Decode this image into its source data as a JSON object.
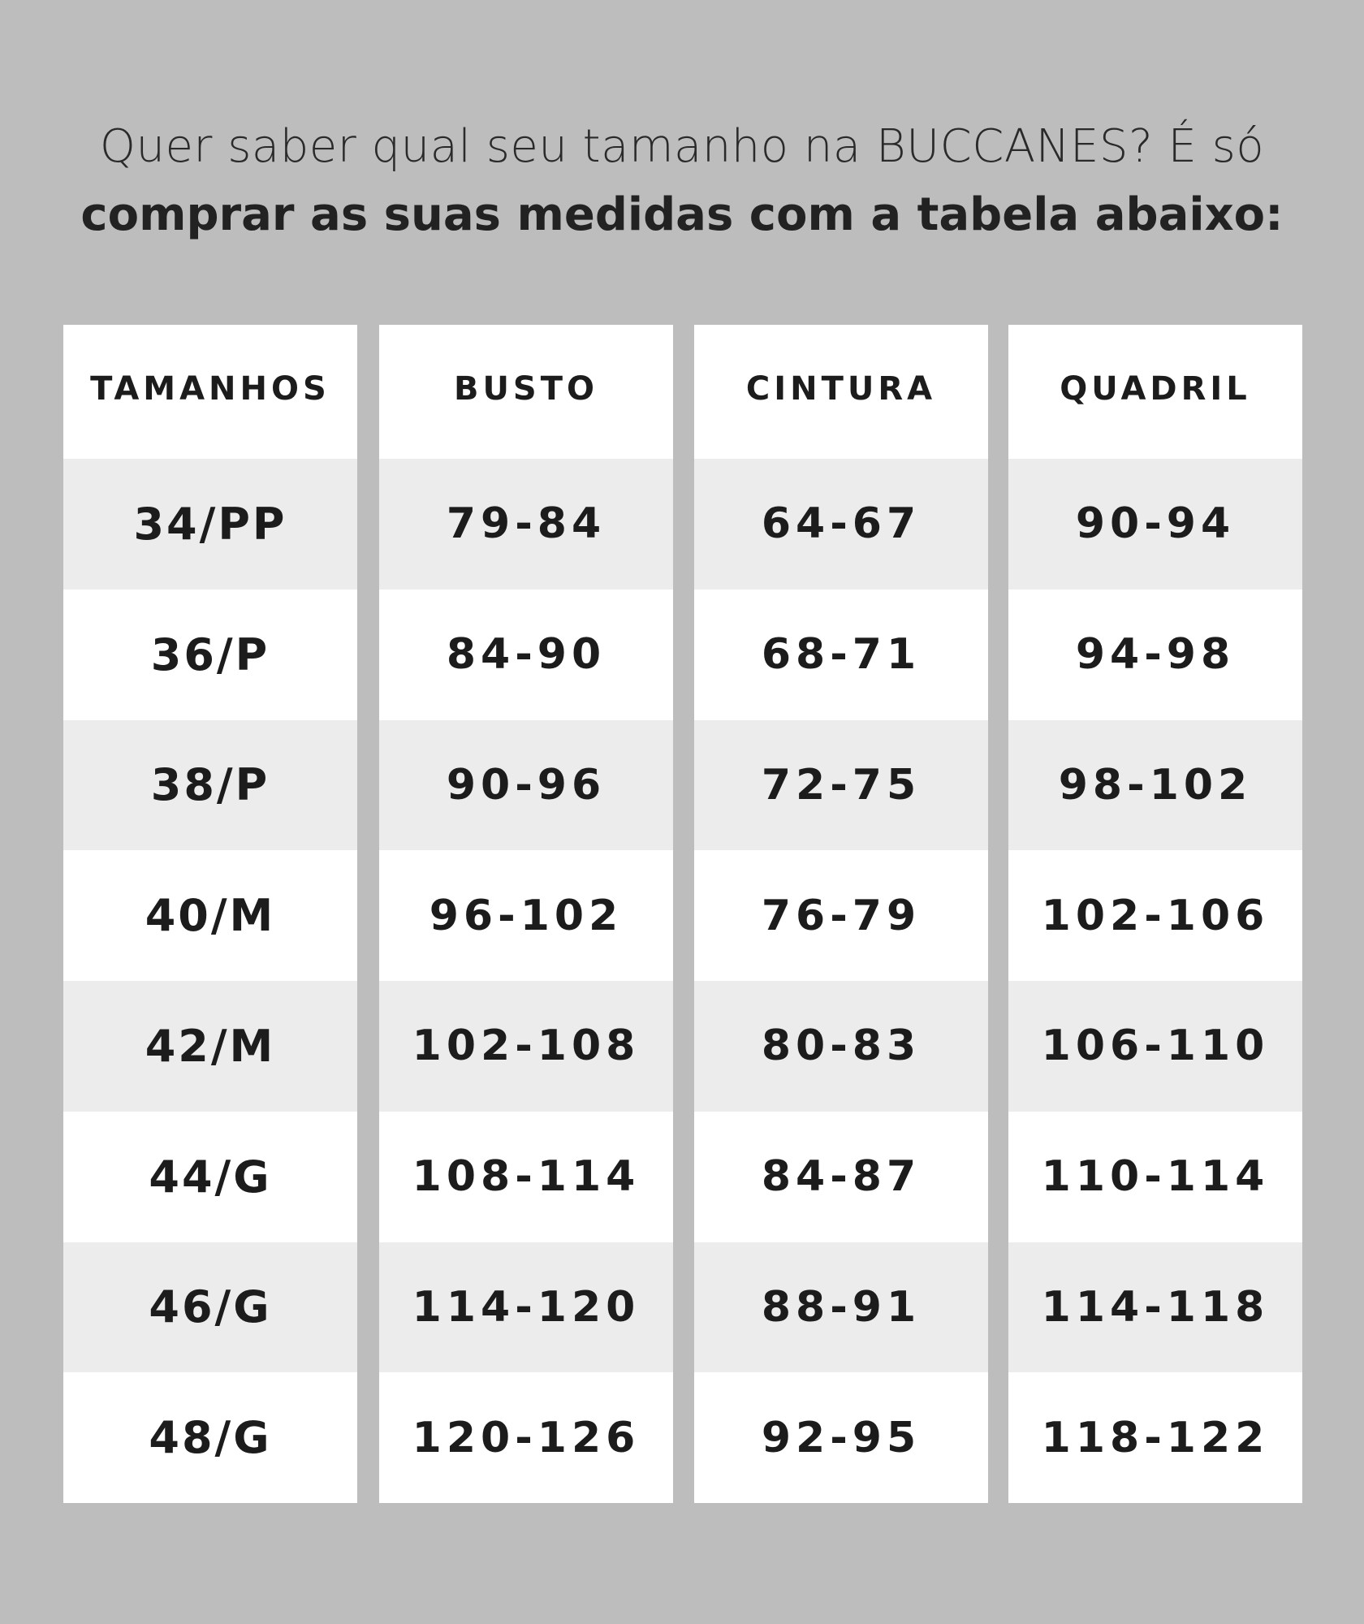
{
  "heading": {
    "line1": "Quer saber qual seu tamanho na BUCCANES? É só",
    "line2": "comprar as suas medidas com a tabela abaixo:"
  },
  "colors": {
    "background": "#bdbdbd",
    "row_shaded": "#ececec",
    "row_plain": "#ffffff",
    "text": "#1c1c1c"
  },
  "table": {
    "headers": [
      "TAMANHOS",
      "BUSTO",
      "CINTURA",
      "QUADRIL"
    ],
    "rows": [
      [
        "34/PP",
        "79-84",
        "64-67",
        "90-94"
      ],
      [
        "36/P",
        "84-90",
        "68-71",
        "94-98"
      ],
      [
        "38/P",
        "90-96",
        "72-75",
        "98-102"
      ],
      [
        "40/M",
        "96-102",
        "76-79",
        "102-106"
      ],
      [
        "42/M",
        "102-108",
        "80-83",
        "106-110"
      ],
      [
        "44/G",
        "108-114",
        "84-87",
        "110-114"
      ],
      [
        "46/G",
        "114-120",
        "88-91",
        "114-118"
      ],
      [
        "48/G",
        "120-126",
        "92-95",
        "118-122"
      ]
    ]
  }
}
